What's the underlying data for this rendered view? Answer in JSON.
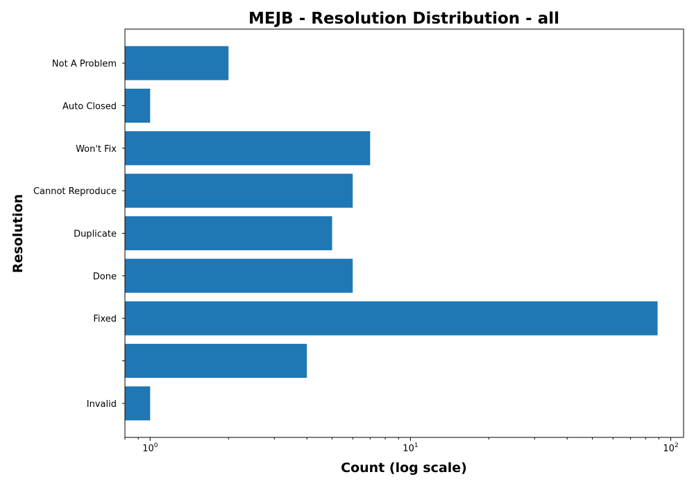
{
  "chart_data": {
    "type": "bar",
    "orientation": "horizontal",
    "title": "MEJB - Resolution Distribution - all",
    "xlabel": "Count (log scale)",
    "ylabel": "Resolution",
    "x_scale": "log",
    "xlim": [
      0.8,
      112
    ],
    "x_ticks": [
      {
        "value": 1,
        "base": "10",
        "exponent": "0"
      },
      {
        "value": 10,
        "base": "10",
        "exponent": "1"
      },
      {
        "value": 100,
        "base": "10",
        "exponent": "2"
      }
    ],
    "categories": [
      "Not A Problem",
      "Auto Closed",
      "Won't Fix",
      "Cannot Reproduce",
      "Duplicate",
      "Done",
      "Fixed",
      "",
      "Invalid"
    ],
    "values": [
      2,
      1,
      7,
      6,
      5,
      6,
      89,
      4,
      1
    ],
    "bar_color": "#1f77b4",
    "grid": false,
    "legend": "none"
  }
}
